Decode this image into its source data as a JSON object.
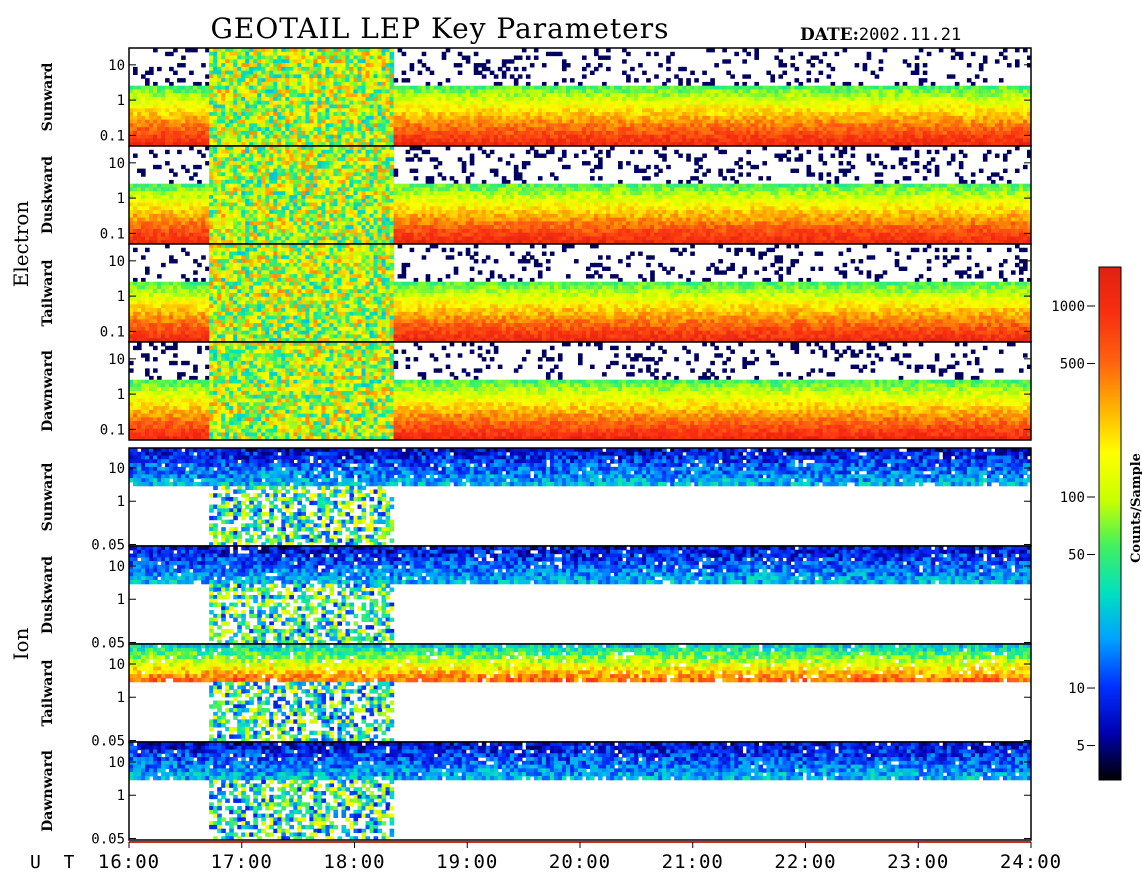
{
  "header": {
    "title": "GEOTAIL LEP Key Parameters",
    "date_label": "DATE:",
    "date_value": "2002.11.21"
  },
  "chart_data": {
    "type": "heatmap",
    "title": "GEOTAIL LEP Key Parameters",
    "date": "2002.11.21",
    "x_axis": {
      "label": "U T",
      "range": [
        "16:00",
        "24:00"
      ],
      "tick_labels": [
        "16:00",
        "17:00",
        "18:00",
        "19:00",
        "20:00",
        "21:00",
        "22:00",
        "23:00",
        "24:00"
      ]
    },
    "colorbar": {
      "label": "Counts/Sample",
      "scale": "log",
      "range": [
        3.3,
        1600
      ],
      "tick_values": [
        5,
        10,
        50,
        100,
        500,
        1000
      ],
      "tick_labels": [
        "5",
        "10",
        "50",
        "100",
        "500",
        "1000"
      ],
      "colors": [
        "#000000",
        "#0000b0",
        "#0030ff",
        "#00a0ff",
        "#00e0c0",
        "#40f060",
        "#c8ff00",
        "#ffff00",
        "#ffb000",
        "#ff6010",
        "#f83010",
        "#e02010"
      ]
    },
    "groups": [
      {
        "name": "Electron",
        "panels": [
          {
            "name": "Sunward",
            "y_scale": "log",
            "y_range": [
              0.05,
              30
            ],
            "y_ticks": [
              0.1,
              1,
              10
            ],
            "y_tick_labels": [
              "0.1",
              "1",
              "10"
            ]
          },
          {
            "name": "Duskward",
            "y_scale": "log",
            "y_range": [
              0.05,
              30
            ],
            "y_ticks": [
              0.1,
              1,
              10
            ],
            "y_tick_labels": [
              "0.1",
              "1",
              "10"
            ]
          },
          {
            "name": "Tailward",
            "y_scale": "log",
            "y_range": [
              0.05,
              30
            ],
            "y_ticks": [
              0.1,
              1,
              10
            ],
            "y_tick_labels": [
              "0.1",
              "1",
              "10"
            ]
          },
          {
            "name": "Dawnward",
            "y_scale": "log",
            "y_range": [
              0.05,
              30
            ],
            "y_ticks": [
              0.1,
              1,
              10
            ],
            "y_tick_labels": [
              "0.1",
              "1",
              "10"
            ]
          }
        ]
      },
      {
        "name": "Ion",
        "panels": [
          {
            "name": "Sunward",
            "y_scale": "log",
            "y_range": [
              0.045,
              40
            ],
            "y_ticks": [
              0.05,
              1,
              10
            ],
            "y_tick_labels": [
              "0.05",
              "1",
              "10"
            ]
          },
          {
            "name": "Duskward",
            "y_scale": "log",
            "y_range": [
              0.045,
              40
            ],
            "y_ticks": [
              0.05,
              1,
              10
            ],
            "y_tick_labels": [
              "0.05",
              "1",
              "10"
            ]
          },
          {
            "name": "Tailward",
            "y_scale": "log",
            "y_range": [
              0.045,
              40
            ],
            "y_ticks": [
              0.05,
              1,
              10
            ],
            "y_tick_labels": [
              "0.05",
              "1",
              "10"
            ]
          },
          {
            "name": "Dawnward",
            "y_scale": "log",
            "y_range": [
              0.045,
              40
            ],
            "y_ticks": [
              0.05,
              1,
              10
            ],
            "y_tick_labels": [
              "0.05",
              "1",
              "10"
            ]
          }
        ]
      }
    ]
  }
}
